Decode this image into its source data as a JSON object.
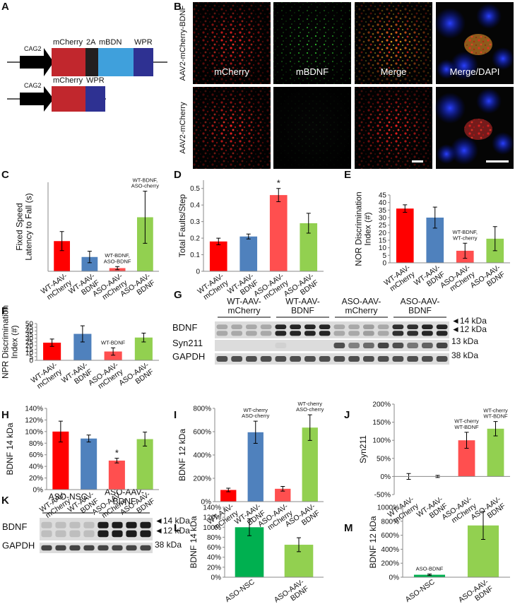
{
  "diagram": {
    "panel": "A",
    "constructs": [
      {
        "promoter": "CAG2",
        "elements": [
          {
            "label": "mCherry",
            "color": "#c1272d"
          },
          {
            "label": "2A",
            "color": "#231f20"
          },
          {
            "label": "mBDN",
            "color": "#3fa0dc"
          },
          {
            "label": "WPR",
            "color": "#2e3192"
          }
        ]
      },
      {
        "promoter": "CAG2",
        "elements": [
          {
            "label": "mCherry",
            "color": "#c1272d"
          },
          {
            "label": "WPR",
            "color": "#2e3192"
          }
        ]
      }
    ]
  },
  "microscopy": {
    "panel": "B",
    "rows": [
      "AAV2-mCherry-BDNF",
      "AAV2-mCherry"
    ],
    "columns": [
      "mCherry",
      "mBDNF",
      "Merge",
      "Merge/DAPI"
    ]
  },
  "blots": [
    {
      "panel": "G",
      "groups": [
        "WT-AAV-\nmCherry",
        "WT-AAV-\nBDNF",
        "ASO-AAV-\nmCherry",
        "ASO-AAV-\nBDNF"
      ],
      "rows": [
        "BDNF",
        "Syn211",
        "GAPDH"
      ],
      "size_labels": [
        "◄14 kDa",
        "◄12 kDa",
        "13 kDa",
        "38 kDa"
      ]
    },
    {
      "panel": "K",
      "groups": [
        "ASO-NSC",
        "ASO-AAV-\nBDNF"
      ],
      "rows": [
        "BDNF",
        "GAPDH"
      ],
      "size_labels": [
        "◄14 kDa",
        "◄12 kDa",
        "38 kDa"
      ]
    }
  ],
  "chart_data": [
    {
      "type": "bar",
      "panel": "C",
      "ylabel": "Fixed Speed\nLatency to Fall (s)",
      "categories": [
        "WT-AAV-\nmCherry",
        "WT-AAV-\nBDNF",
        "ASO-AAV-\nmCherry",
        "ASO-AAV-\nBDNF"
      ],
      "values": [
        95,
        45,
        10,
        170
      ],
      "errors": [
        30,
        18,
        5,
        82
      ],
      "colors": [
        "#ff0000",
        "#4f81bd",
        "#ff4f4f",
        "#92d050"
      ],
      "annotations": [
        null,
        null,
        "WT-BDNF,\nASO-BDNF",
        "WT-BDNF,\nASO-cherry"
      ],
      "ylim": [
        0,
        280
      ],
      "yticks": []
    },
    {
      "type": "bar",
      "panel": "D",
      "ylabel": "Total Faults/Step",
      "categories": [
        "WT-AAV-\nmCherry",
        "WT-AAV-\nBDNF",
        "ASO-AAV-\nmCherry",
        "ASO-AAV-\nBDNF"
      ],
      "values": [
        0.18,
        0.21,
        0.46,
        0.29
      ],
      "errors": [
        0.02,
        0.015,
        0.04,
        0.06
      ],
      "colors": [
        "#ff0000",
        "#4f81bd",
        "#ff4f4f",
        "#92d050"
      ],
      "annotations": [
        null,
        null,
        "*",
        null
      ],
      "ylim": [
        0,
        0.55
      ],
      "yticks": [
        0,
        0.1,
        0.2,
        0.3,
        0.4,
        0.5
      ]
    },
    {
      "type": "bar",
      "panel": "E",
      "ylabel": "NOR Discrimination\nIndex (#)",
      "categories": [
        "WT-AAV-\nmCherry",
        "WT-AAV-\nBDNF",
        "ASO-AAV-\nmCherry",
        "ASO-AAV-\nBDNF"
      ],
      "values": [
        36,
        30,
        8,
        16
      ],
      "errors": [
        2.5,
        7,
        5,
        8
      ],
      "colors": [
        "#ff0000",
        "#4f81bd",
        "#ff4f4f",
        "#92d050"
      ],
      "annotations": [
        null,
        null,
        "WT-BDNF,\nWT-cherry",
        null
      ],
      "ylim": [
        0,
        45
      ],
      "yticks": [
        0,
        5,
        10,
        15,
        20,
        25,
        30,
        35,
        40,
        45
      ]
    },
    {
      "type": "bar",
      "panel": "F",
      "ylabel": "NPR Discrimination\nIndex (#)",
      "categories": [
        "WT-AAV-\nmCherry",
        "WT-AAV-\nBDNF",
        "ASO-AAV-\nmCherry",
        "ASO-AAV-\nBDNF"
      ],
      "values": [
        24,
        36,
        12,
        31
      ],
      "errors": [
        5,
        11,
        5,
        6
      ],
      "colors": [
        "#ff0000",
        "#4f81bd",
        "#ff4f4f",
        "#92d050"
      ],
      "annotations": [
        null,
        null,
        "WT-BDNF",
        null
      ],
      "ylim": [
        0,
        50
      ],
      "yticks": [
        0,
        5,
        10,
        15,
        20,
        25,
        30,
        35,
        40,
        45,
        50
      ]
    },
    {
      "type": "bar",
      "panel": "H",
      "ylabel": "BDNF 14 kDa",
      "categories": [
        "WT-AAV-\nmCherry",
        "WT-AAV-\nBDNF",
        "ASO-AAV-\nmCherry",
        "ASO-AAV-\nBDNF"
      ],
      "values": [
        100,
        88,
        50,
        87
      ],
      "errors": [
        18,
        6,
        4,
        12
      ],
      "colors": [
        "#ff0000",
        "#4f81bd",
        "#ff4f4f",
        "#92d050"
      ],
      "annotations": [
        null,
        null,
        "*",
        null
      ],
      "ylim": [
        0,
        140
      ],
      "yticks": [
        {
          "value": 0,
          "label": "0%"
        },
        {
          "value": 20,
          "label": "20%"
        },
        {
          "value": 40,
          "label": "40%"
        },
        {
          "value": 60,
          "label": "60%"
        },
        {
          "value": 80,
          "label": "80%"
        },
        {
          "value": 100,
          "label": "100%"
        },
        {
          "value": 120,
          "label": "120%"
        },
        {
          "value": 140,
          "label": "140%"
        }
      ]
    },
    {
      "type": "bar",
      "panel": "I",
      "ylabel": "BDNF 12 kDa",
      "categories": [
        "WT-AAV-\nmCherry",
        "WT-AAV-\nBDNF",
        "ASO-AAV-\nmCherry",
        "ASO-AAV-\nBDNF"
      ],
      "values": [
        100,
        595,
        110,
        635
      ],
      "errors": [
        15,
        95,
        20,
        110
      ],
      "colors": [
        "#ff0000",
        "#4f81bd",
        "#ff4f4f",
        "#92d050"
      ],
      "annotations": [
        null,
        "WT-cherry\nASO-cherry",
        null,
        "WT-cherry\nASO-cherry"
      ],
      "ylim": [
        0,
        800
      ],
      "yticks": [
        {
          "value": 0,
          "label": "0%"
        },
        {
          "value": 200,
          "label": "200%"
        },
        {
          "value": 400,
          "label": "400%"
        },
        {
          "value": 600,
          "label": "600%"
        },
        {
          "value": 800,
          "label": "800%"
        }
      ]
    },
    {
      "type": "bar",
      "panel": "J",
      "ylabel": "Syn211",
      "categories": [
        "WT-AAV-\nmCherry",
        "WT-AAV-\nBDNF",
        "ASO-AAV-\nmCherry",
        "ASO-AAV-\nBDNF"
      ],
      "values": [
        0,
        0,
        100,
        132
      ],
      "errors": [
        8,
        3,
        22,
        20
      ],
      "colors": [
        "none",
        "none",
        "#ff4f4f",
        "#92d050"
      ],
      "annotations": [
        null,
        null,
        "WT-cherry\nWT-BDNF",
        "WT-cherry\nWT-BDNF"
      ],
      "ylim": [
        -50,
        200
      ],
      "yticks": [
        {
          "value": -50,
          "label": "-50%"
        },
        {
          "value": 0,
          "label": "0%"
        },
        {
          "value": 50,
          "label": "50%"
        },
        {
          "value": 100,
          "label": "100%"
        },
        {
          "value": 150,
          "label": "150%"
        },
        {
          "value": 200,
          "label": "200%"
        }
      ]
    },
    {
      "type": "bar",
      "panel": "L",
      "ylabel": "BDNF 14 kDa",
      "categories": [
        "ASO-NSC",
        "ASO-AAV-\nBDNF"
      ],
      "values": [
        100,
        65
      ],
      "errors": [
        17,
        14
      ],
      "colors": [
        "#00b050",
        "#92d050"
      ],
      "annotations": [
        null,
        null
      ],
      "ylim": [
        0,
        140
      ],
      "yticks": [
        {
          "value": 0,
          "label": "0%"
        },
        {
          "value": 20,
          "label": "20%"
        },
        {
          "value": 40,
          "label": "40%"
        },
        {
          "value": 60,
          "label": "60%"
        },
        {
          "value": 80,
          "label": "80%"
        },
        {
          "value": 100,
          "label": "100%"
        },
        {
          "value": 120,
          "label": "120%"
        },
        {
          "value": 140,
          "label": "140%"
        }
      ]
    },
    {
      "type": "bar",
      "panel": "M",
      "ylabel": "BDNF 12 kDa",
      "categories": [
        "ASO-NSC",
        "ASO-AAV-\nBDNF"
      ],
      "values": [
        35,
        740
      ],
      "errors": [
        10,
        200
      ],
      "colors": [
        "#00b050",
        "#92d050"
      ],
      "annotations": [
        "ASO-BDNF",
        null
      ],
      "ylim": [
        0,
        1000
      ],
      "yticks": [
        {
          "value": 0,
          "label": "0%"
        },
        {
          "value": 200,
          "label": "200%"
        },
        {
          "value": 400,
          "label": "400%"
        },
        {
          "value": 600,
          "label": "600%"
        },
        {
          "value": 800,
          "label": "800%"
        },
        {
          "value": 1000,
          "label": "1000%"
        }
      ]
    }
  ]
}
